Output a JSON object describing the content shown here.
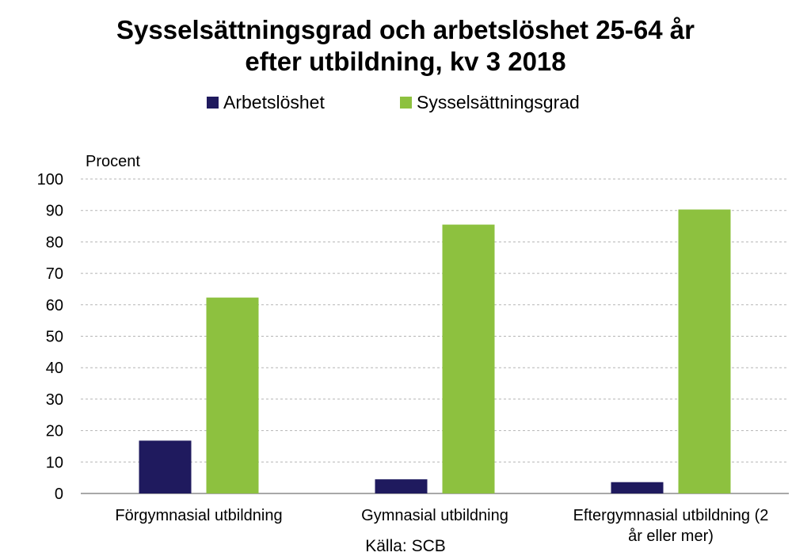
{
  "chart_data": {
    "type": "bar",
    "title_line1": "Sysselsättningsgrad och arbetslöshet 25-64 år",
    "title_line2": "efter utbildning, kv 3 2018",
    "ylabel": "Procent",
    "ylim": [
      0,
      100
    ],
    "yticks": [
      0,
      10,
      20,
      30,
      40,
      50,
      60,
      70,
      80,
      90,
      100
    ],
    "categories": [
      [
        "Förgymnasial utbildning"
      ],
      [
        "Gymnasial utbildning"
      ],
      [
        "Eftergymnasial utbildning (2",
        "år eller mer)"
      ]
    ],
    "series": [
      {
        "name": "Arbetslöshet",
        "color": "#1f1a5e",
        "values": [
          16.8,
          4.5,
          3.6
        ]
      },
      {
        "name": "Sysselsättningsgrad",
        "color": "#8dc13f",
        "values": [
          62.3,
          85.5,
          90.3
        ]
      }
    ],
    "grid": true,
    "legend_position": "top",
    "source": "Källa: SCB"
  }
}
